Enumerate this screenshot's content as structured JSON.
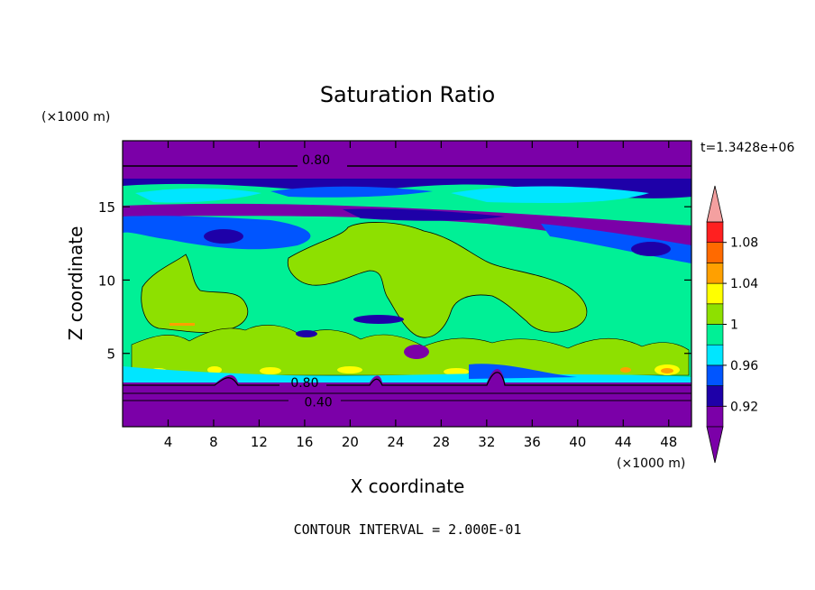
{
  "chart_data": {
    "type": "heatmap",
    "title": "Saturation Ratio",
    "xlabel": "X coordinate",
    "ylabel": "Z coordinate",
    "x_units": "(×1000 m)",
    "y_units": "(×1000 m)",
    "time_label": "t=1.3428e+06",
    "footer": "CONTOUR INTERVAL = 2.000E-01",
    "xlim": [
      0,
      50
    ],
    "ylim": [
      0,
      19.5
    ],
    "x_ticks": [
      4,
      8,
      12,
      16,
      20,
      24,
      28,
      32,
      36,
      40,
      44,
      48
    ],
    "y_ticks": [
      5,
      10,
      15
    ],
    "contour_labels": [
      {
        "text": "0.80",
        "x": 17.0,
        "y": 18.2
      },
      {
        "text": "0.80",
        "x": 16.0,
        "y": 3.0
      },
      {
        "text": "0.40",
        "x": 17.2,
        "y": 1.7
      }
    ],
    "colorbar": {
      "levels": [
        0.9,
        0.92,
        0.94,
        0.96,
        0.98,
        1.0,
        1.02,
        1.04,
        1.06,
        1.08,
        1.1
      ],
      "tick_labels": [
        "0.92",
        "0.96",
        "1",
        "1.04",
        "1.08"
      ],
      "tick_values": [
        0.92,
        0.96,
        1.0,
        1.04,
        1.08
      ],
      "colors": [
        "#7b00a8",
        "#1e00a8",
        "#0055ff",
        "#00e6ff",
        "#00f096",
        "#8ee000",
        "#ffff00",
        "#ffa000",
        "#ff6a00",
        "#ff2020"
      ],
      "under_color": "#7b00a8",
      "over_color": "#f4a0a0"
    },
    "bands": [
      {
        "label": "0.80",
        "z": [
          17.8,
          19.5
        ],
        "color": "#7b00a8"
      },
      {
        "label": "0.92",
        "z": [
          15.0,
          17.8
        ],
        "color": "#1e00a8"
      },
      {
        "label": "0.96",
        "z": [
          12.0,
          15.0
        ],
        "color": "#0055ff"
      },
      {
        "label": "1",
        "z": [
          3.5,
          12.0
        ],
        "color": "#00f096"
      },
      {
        "label": "0.80",
        "z": [
          0.0,
          3.5
        ],
        "color": "#7b00a8"
      }
    ]
  }
}
